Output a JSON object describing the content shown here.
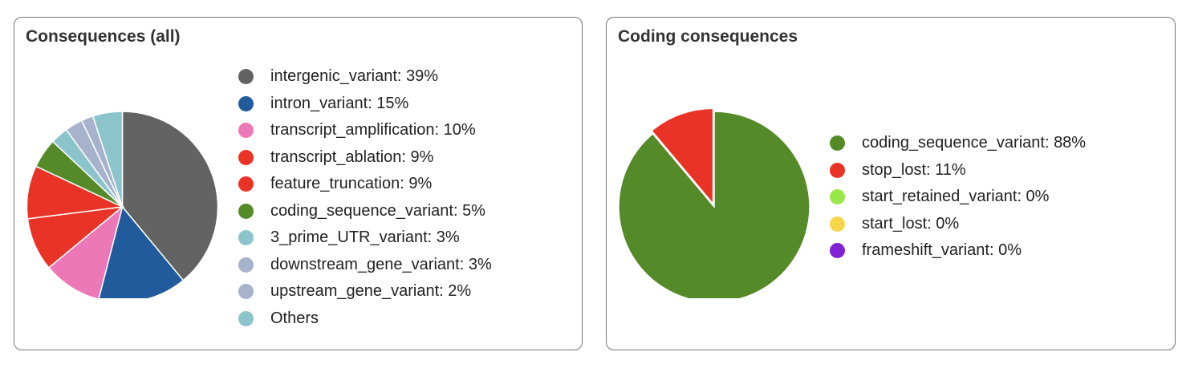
{
  "chart_data": [
    {
      "type": "pie",
      "title": "Consequences (all)",
      "slices": [
        {
          "label": "intergenic_variant: 39%",
          "value": 39,
          "color": "#636363"
        },
        {
          "label": "intron_variant: 15%",
          "value": 15,
          "color": "#225b9b"
        },
        {
          "label": "transcript_amplification: 10%",
          "value": 10,
          "color": "#ed78b7"
        },
        {
          "label": "transcript_ablation: 9%",
          "value": 9,
          "color": "#ea3327"
        },
        {
          "label": "feature_truncation: 9%",
          "value": 9,
          "color": "#ea3327"
        },
        {
          "label": "coding_sequence_variant: 5%",
          "value": 5,
          "color": "#548a27"
        },
        {
          "label": "3_prime_UTR_variant: 3%",
          "value": 3,
          "color": "#8cc4cc"
        },
        {
          "label": "downstream_gene_variant: 3%",
          "value": 3,
          "color": "#a7b3cc"
        },
        {
          "label": "upstream_gene_variant: 2%",
          "value": 2,
          "color": "#a7b3cc"
        },
        {
          "label": "Others",
          "value": 5,
          "color": "#8cc4cc"
        }
      ],
      "legend_position": "right"
    },
    {
      "type": "pie",
      "title": "Coding consequences",
      "slices": [
        {
          "label": "coding_sequence_variant: 88%",
          "value": 88,
          "color": "#548a27"
        },
        {
          "label": "stop_lost: 11%",
          "value": 11,
          "color": "#ea3327",
          "exploded": true
        },
        {
          "label": "start_retained_variant: 0%",
          "value": 0,
          "color": "#99e748"
        },
        {
          "label": "start_lost: 0%",
          "value": 0,
          "color": "#f7d54a"
        },
        {
          "label": "frameshift_variant: 0%",
          "value": 0,
          "color": "#8121d2"
        }
      ],
      "legend_position": "right"
    }
  ]
}
